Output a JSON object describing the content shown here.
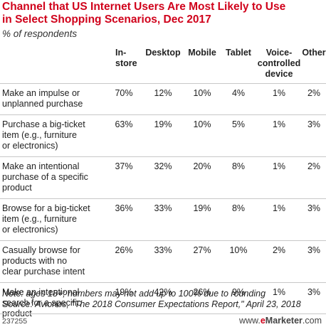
{
  "chart_data": {
    "type": "table",
    "title": "Channel that US Internet Users Are Most Likely to Use\nin Select Shopping Scenarios, Dec 2017",
    "subtitle": "% of respondents",
    "columns": [
      "",
      "In-\nstore",
      "Desktop",
      "Mobile",
      "Tablet",
      "Voice-\ncontrolled\ndevice",
      "Other"
    ],
    "rows": [
      {
        "label": "Make an impulse or\nunplanned purchase",
        "values": [
          "70%",
          "12%",
          "10%",
          "4%",
          "1%",
          "2%"
        ]
      },
      {
        "label": "Purchase a big-ticket\nitem (e.g., furniture\nor electronics)",
        "values": [
          "63%",
          "19%",
          "10%",
          "5%",
          "1%",
          "3%"
        ]
      },
      {
        "label": "Make an intentional\npurchase of a specific\nproduct",
        "values": [
          "37%",
          "32%",
          "20%",
          "8%",
          "1%",
          "2%"
        ]
      },
      {
        "label": "Browse for a big-ticket\nitem (e.g., furniture\nor electronics)",
        "values": [
          "36%",
          "33%",
          "19%",
          "8%",
          "1%",
          "3%"
        ]
      },
      {
        "label": "Casually browse for\nproducts with no\nclear purchase intent",
        "values": [
          "26%",
          "33%",
          "27%",
          "10%",
          "2%",
          "3%"
        ]
      },
      {
        "label": "Make an intentional\nsearch for a specific\nproduct",
        "values": [
          "19%",
          "42%",
          "26%",
          "9%",
          "1%",
          "3%"
        ]
      }
    ],
    "note": "Note: ages 18+; numbers may not add up to 100% due to rounding",
    "source": "Source: Avionos, \"The 2018 Consumer Expectations Report,\" April 23, 2018",
    "chart_id": "237255",
    "brand_prefix": "e",
    "brand_rest": "Marketer",
    "brand_suffix": ".com",
    "colors": {
      "title": "#d0021b",
      "rule": "#c8c8c8"
    }
  }
}
